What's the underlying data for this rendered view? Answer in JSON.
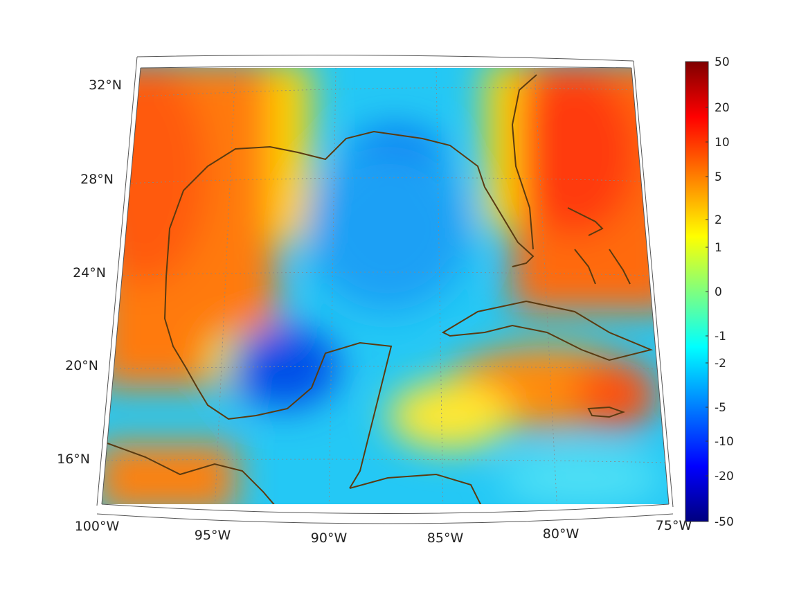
{
  "map": {
    "projection": "conic",
    "lon_range": [
      -100,
      -75
    ],
    "lat_range": [
      14,
      33
    ],
    "grid": true,
    "coastline_color": "#5a3a10",
    "field_description_colormap": "jet",
    "lat_ticks": [
      {
        "value": 32,
        "label": "32°N"
      },
      {
        "value": 28,
        "label": "28°N"
      },
      {
        "value": 24,
        "label": "24°N"
      },
      {
        "value": 20,
        "label": "20°N"
      },
      {
        "value": 16,
        "label": "16°N"
      }
    ],
    "lon_ticks": [
      {
        "value": -100,
        "label": "100°W"
      },
      {
        "value": -95,
        "label": "95°W"
      },
      {
        "value": -90,
        "label": "90°W"
      },
      {
        "value": -85,
        "label": "85°W"
      },
      {
        "value": -80,
        "label": "80°W"
      },
      {
        "value": -75,
        "label": "75°W"
      }
    ]
  },
  "colorbar": {
    "scale": "symmetric-log",
    "range": [
      -50,
      50
    ],
    "ticks": [
      {
        "value": 50,
        "label": "50"
      },
      {
        "value": 20,
        "label": "20"
      },
      {
        "value": 10,
        "label": "10"
      },
      {
        "value": 5,
        "label": "5"
      },
      {
        "value": 2,
        "label": "2"
      },
      {
        "value": 1,
        "label": "1"
      },
      {
        "value": 0,
        "label": "0"
      },
      {
        "value": -1,
        "label": "-1"
      },
      {
        "value": -2,
        "label": "-2"
      },
      {
        "value": -5,
        "label": "-5"
      },
      {
        "value": -10,
        "label": "-10"
      },
      {
        "value": -20,
        "label": "-20"
      },
      {
        "value": -50,
        "label": "-50"
      }
    ],
    "colors": [
      "#00007f",
      "#0000ff",
      "#007fff",
      "#00ffff",
      "#7fff7f",
      "#ffff00",
      "#ff7f00",
      "#ff0000",
      "#7f0000"
    ]
  }
}
